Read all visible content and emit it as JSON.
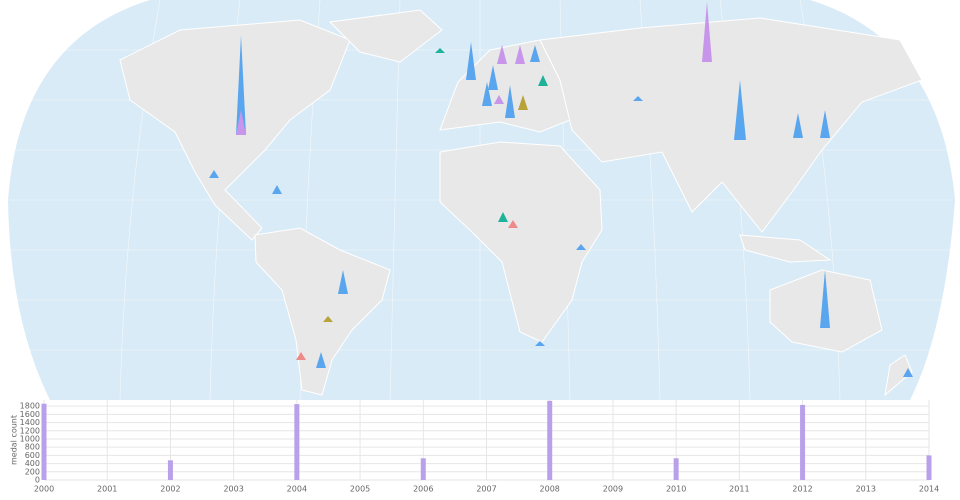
{
  "chart_data": {
    "type": "bar",
    "ylabel": "medal count",
    "x": [
      2000,
      2002,
      2004,
      2006,
      2008,
      2010,
      2012,
      2014
    ],
    "values": [
      1860,
      480,
      1850,
      530,
      1930,
      530,
      1830,
      600
    ],
    "color": "#b9a0ea",
    "xlim": [
      2000,
      2014
    ],
    "xticks": [
      2000,
      2001,
      2002,
      2003,
      2004,
      2005,
      2006,
      2007,
      2008,
      2009,
      2010,
      2011,
      2012,
      2013,
      2014
    ],
    "ylim": [
      0,
      1950
    ],
    "yticks": [
      0,
      200,
      400,
      600,
      800,
      1000,
      1200,
      1400,
      1600,
      1800
    ],
    "grid": true
  }
}
